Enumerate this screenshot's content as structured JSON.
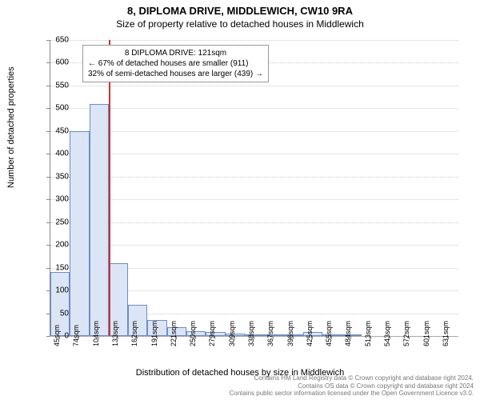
{
  "title": {
    "line1": "8, DIPLOMA DRIVE, MIDDLEWICH, CW10 9RA",
    "line2": "Size of property relative to detached houses in Middlewich"
  },
  "y_axis": {
    "title": "Number of detached properties",
    "min": 0,
    "max": 650,
    "ticks": [
      0,
      50,
      100,
      150,
      200,
      250,
      300,
      350,
      400,
      450,
      500,
      550,
      600,
      650
    ]
  },
  "x_axis": {
    "title": "Distribution of detached houses by size in Middlewich",
    "labels": [
      "45sqm",
      "74sqm",
      "104sqm",
      "133sqm",
      "162sqm",
      "191sqm",
      "221sqm",
      "250sqm",
      "279sqm",
      "309sqm",
      "338sqm",
      "367sqm",
      "396sqm",
      "425sqm",
      "455sqm",
      "484sqm",
      "513sqm",
      "543sqm",
      "572sqm",
      "601sqm",
      "631sqm"
    ]
  },
  "bars": {
    "values": [
      140,
      450,
      510,
      160,
      68,
      35,
      20,
      10,
      8,
      5,
      4,
      2,
      2,
      8,
      1,
      1,
      0,
      0,
      0,
      0,
      0
    ],
    "fill_color": "#dbe5f5",
    "border_color": "#6a8fc8"
  },
  "marker": {
    "color": "#d03030",
    "bin_index_left_edge": 3,
    "annotation": {
      "line1": "8 DIPLOMA DRIVE: 121sqm",
      "line2": "← 67% of detached houses are smaller (911)",
      "line3": "32% of semi-detached houses are larger (439) →"
    }
  },
  "footer": {
    "line1": "Contains HM Land Registry data © Crown copyright and database right 2024.",
    "line2": "Contains OS data © Crown copyright and database right 2024",
    "line3": "Contains public sector information licensed under the Open Government Licence v3.0."
  },
  "style": {
    "background_color": "#ffffff",
    "grid_color": "#cccccc",
    "axis_color": "#888888",
    "title_fontsize": 13,
    "subtitle_fontsize": 12,
    "tick_fontsize": 10,
    "axis_title_fontsize": 11
  }
}
